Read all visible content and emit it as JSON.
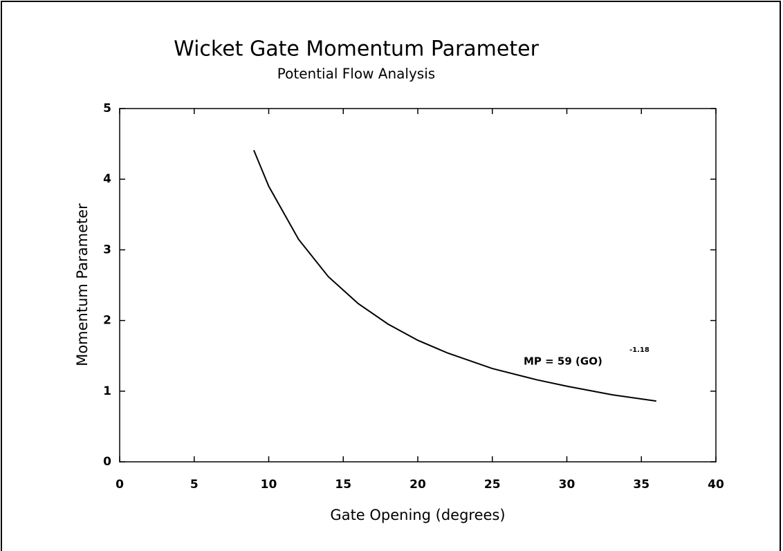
{
  "chart_data": {
    "type": "line",
    "title": "Wicket Gate Momentum Parameter",
    "subtitle": "Potential Flow Analysis",
    "x_label": "Gate Opening (degrees)",
    "y_label": "Momentum Parameter",
    "annotation": {
      "text": "MP = 59 (GO)",
      "superscript": "-1.18"
    },
    "x": [
      9,
      10,
      12,
      14,
      16,
      18,
      20,
      22,
      25,
      28,
      30,
      33,
      36
    ],
    "series": [
      {
        "name": "MP",
        "color": "#000000",
        "values": [
          4.41,
          3.9,
          3.15,
          2.62,
          2.24,
          1.95,
          1.72,
          1.54,
          1.32,
          1.16,
          1.07,
          0.95,
          0.86
        ]
      }
    ],
    "xlim": [
      0,
      40
    ],
    "xticks": [
      0,
      5,
      10,
      15,
      20,
      25,
      30,
      35,
      40
    ],
    "ylim": [
      0,
      5
    ],
    "yticks": [
      0,
      1,
      2,
      3,
      4,
      5
    ],
    "grid": false
  }
}
